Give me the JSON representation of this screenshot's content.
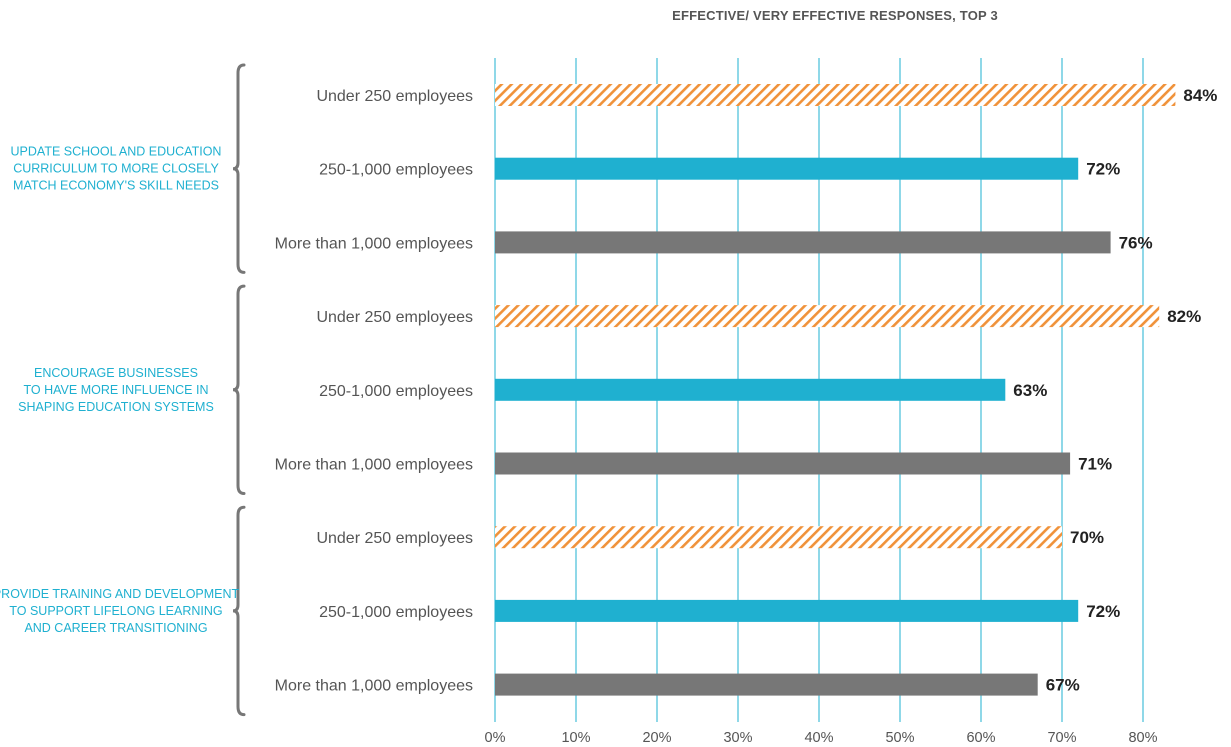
{
  "chart_data": {
    "type": "bar",
    "orientation": "horizontal",
    "title": "EFFECTIVE/ VERY EFFECTIVE RESPONSES, TOP 3",
    "xlim": [
      0,
      85
    ],
    "x_ticks": [
      "0%",
      "10%",
      "20%",
      "30%",
      "40%",
      "50%",
      "60%",
      "70%",
      "80%"
    ],
    "grid": true,
    "value_suffix": "%",
    "groups": [
      {
        "label_lines": [
          "UPDATE SCHOOL AND EDUCATION",
          "CURRICULUM TO MORE  CLOSELY",
          "MATCH ECONOMY'S SKILL NEEDS"
        ],
        "bars": [
          {
            "category": "Under 250 employees",
            "value": 84,
            "label": "84%"
          },
          {
            "category": "250-1,000 employees",
            "value": 72,
            "label": "72%"
          },
          {
            "category": "More than 1,000 employees",
            "value": 76,
            "label": "76%"
          }
        ]
      },
      {
        "label_lines": [
          "ENCOURAGE BUSINESSES",
          "TO HAVE MORE INFLUENCE IN",
          "SHAPING EDUCATION SYSTEMS"
        ],
        "bars": [
          {
            "category": "Under 250 employees",
            "value": 82,
            "label": "82%"
          },
          {
            "category": "250-1,000 employees",
            "value": 63,
            "label": "63%"
          },
          {
            "category": "More than 1,000 employees",
            "value": 71,
            "label": "71%"
          }
        ]
      },
      {
        "label_lines": [
          "PROVIDE TRAINING AND DEVELOPMENT",
          "TO SUPPORT LIFELONG LEARNING",
          "AND CAREER TRANSITIONING"
        ],
        "bars": [
          {
            "category": "Under 250 employees",
            "value": 70,
            "label": "70%"
          },
          {
            "category": "250-1,000 employees",
            "value": 72,
            "label": "72%"
          },
          {
            "category": "More than 1,000 employees",
            "value": 67,
            "label": "67%"
          }
        ]
      }
    ],
    "series_colors": {
      "Under 250 employees": "#f0923a",
      "250-1,000 employees": "#1fb0d0",
      "More than 1,000 employees": "#777777"
    },
    "gridline_color": "#1fb0d0",
    "bracket_color": "#777777",
    "group_label_color": "#1fb0d0"
  }
}
